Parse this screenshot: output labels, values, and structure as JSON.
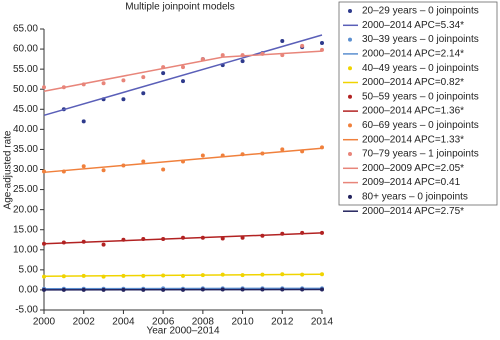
{
  "chart_data": {
    "type": "scatter",
    "title": "Multiple joinpoint models",
    "x_label": "Year 2000–2014",
    "y_label": "Age-adjusted rate",
    "x": [
      2000,
      2001,
      2002,
      2003,
      2004,
      2005,
      2006,
      2007,
      2008,
      2009,
      2010,
      2011,
      2012,
      2013,
      2014
    ],
    "xlim": [
      2000,
      2014
    ],
    "xticks": [
      2000,
      2002,
      2004,
      2006,
      2008,
      2010,
      2012,
      2014
    ],
    "ylim": [
      -5,
      65
    ],
    "yticks": [
      {
        "value": -5,
        "label": "-5.00"
      },
      {
        "value": 0,
        "label": "0.00"
      },
      {
        "value": 5,
        "label": "5.00"
      },
      {
        "value": 10,
        "label": "10.00"
      },
      {
        "value": 15,
        "label": "15.00"
      },
      {
        "value": 20,
        "label": "20.00"
      },
      {
        "value": 25,
        "label": "25.00"
      },
      {
        "value": 30,
        "label": "30.00"
      },
      {
        "value": 35,
        "label": "35.00"
      },
      {
        "value": 40,
        "label": "40.00"
      },
      {
        "value": 45,
        "label": "45.00"
      },
      {
        "value": 50,
        "label": "50.00"
      },
      {
        "value": 55,
        "label": "55.00"
      },
      {
        "value": 60,
        "label": "60.00"
      },
      {
        "value": 65,
        "label": "65.00"
      }
    ],
    "legend": "right",
    "series": [
      {
        "name": "20–29 years – 0 joinpoints",
        "mark": "point",
        "color": "#2e3a8c",
        "values": [
          null,
          45,
          42,
          47.5,
          47.5,
          49,
          54,
          52,
          57.5,
          56,
          57,
          59,
          62,
          60.5,
          61.5
        ]
      },
      {
        "name": "2000–2014 APC=5.34*",
        "mark": "line",
        "color": "#5a5fb8",
        "x": [
          2000,
          2014
        ],
        "values": [
          43.5,
          63.5
        ]
      },
      {
        "name": "30–39 years – 0 joinpoints",
        "mark": "point",
        "color": "#5b8fd0",
        "values": [
          0.3,
          0.3,
          0.3,
          0.3,
          0.3,
          0.3,
          0.4,
          0.3,
          0.4,
          0.4,
          0.4,
          0.4,
          0.4,
          0.4,
          0.4
        ]
      },
      {
        "name": "2000–2014 APC=2.14*",
        "mark": "line",
        "color": "#5b8fd0",
        "x": [
          2000,
          2014
        ],
        "values": [
          0.3,
          0.4
        ]
      },
      {
        "name": "40–49 years – 0 joinpoints",
        "mark": "point",
        "color": "#f0d400",
        "values": [
          3.3,
          3.4,
          3.5,
          3.3,
          3.5,
          3.5,
          3.6,
          3.5,
          3.7,
          3.8,
          3.7,
          3.8,
          3.9,
          3.8,
          3.9
        ]
      },
      {
        "name": "2000–2014 APC=0.82*",
        "mark": "line",
        "color": "#f0d400",
        "x": [
          2000,
          2014
        ],
        "values": [
          3.4,
          3.9
        ]
      },
      {
        "name": "50–59 years – 0 joinpoints",
        "mark": "point",
        "color": "#b22222",
        "values": [
          11.5,
          11.8,
          12,
          11.3,
          12.5,
          12.7,
          12.7,
          13,
          13,
          12.8,
          13,
          13.5,
          14,
          14.2,
          14.2
        ]
      },
      {
        "name": "2000–2014 APC=1.36*",
        "mark": "line",
        "color": "#b22222",
        "x": [
          2000,
          2014
        ],
        "values": [
          11.5,
          14.2
        ]
      },
      {
        "name": "60–69 years – 0 joinpoints",
        "mark": "point",
        "color": "#f0803c",
        "values": [
          29.5,
          29.5,
          30.8,
          29.8,
          31,
          32,
          30,
          32,
          33.5,
          33.5,
          33.8,
          34,
          35,
          34.5,
          35.5
        ]
      },
      {
        "name": "2000–2014 APC=1.33*",
        "mark": "line",
        "color": "#f0803c",
        "x": [
          2000,
          2014
        ],
        "values": [
          29.3,
          35.3
        ]
      },
      {
        "name": "70–79 years – 1 joinpoints",
        "mark": "point",
        "color": "#e8857a",
        "values": [
          50.5,
          50.5,
          51.2,
          51.5,
          52.2,
          53,
          55.5,
          55.5,
          57.5,
          58.5,
          58.5,
          58.8,
          58.5,
          60.8,
          59.8
        ]
      },
      {
        "name": "2000–2009 APC=2.05*",
        "mark": "line",
        "color": "#e8857a",
        "x": [
          2000,
          2009
        ],
        "values": [
          49.5,
          58
        ]
      },
      {
        "name": "2009–2014 APC=0.41",
        "mark": "line",
        "color": "#e8857a",
        "x": [
          2009,
          2014
        ],
        "values": [
          58,
          59.5
        ]
      },
      {
        "name": "80+ years – 0 joinpoints",
        "mark": "point",
        "color": "#23235e",
        "values": [
          0,
          0,
          0,
          0,
          0,
          0,
          0,
          0,
          0.1,
          0.1,
          0.1,
          0.1,
          0.1,
          0.1,
          0.1
        ]
      },
      {
        "name": "2000–2014 APC=2.75*",
        "mark": "line",
        "color": "#23235e",
        "x": [
          2000,
          2014
        ],
        "values": [
          0,
          0.1
        ]
      }
    ]
  }
}
